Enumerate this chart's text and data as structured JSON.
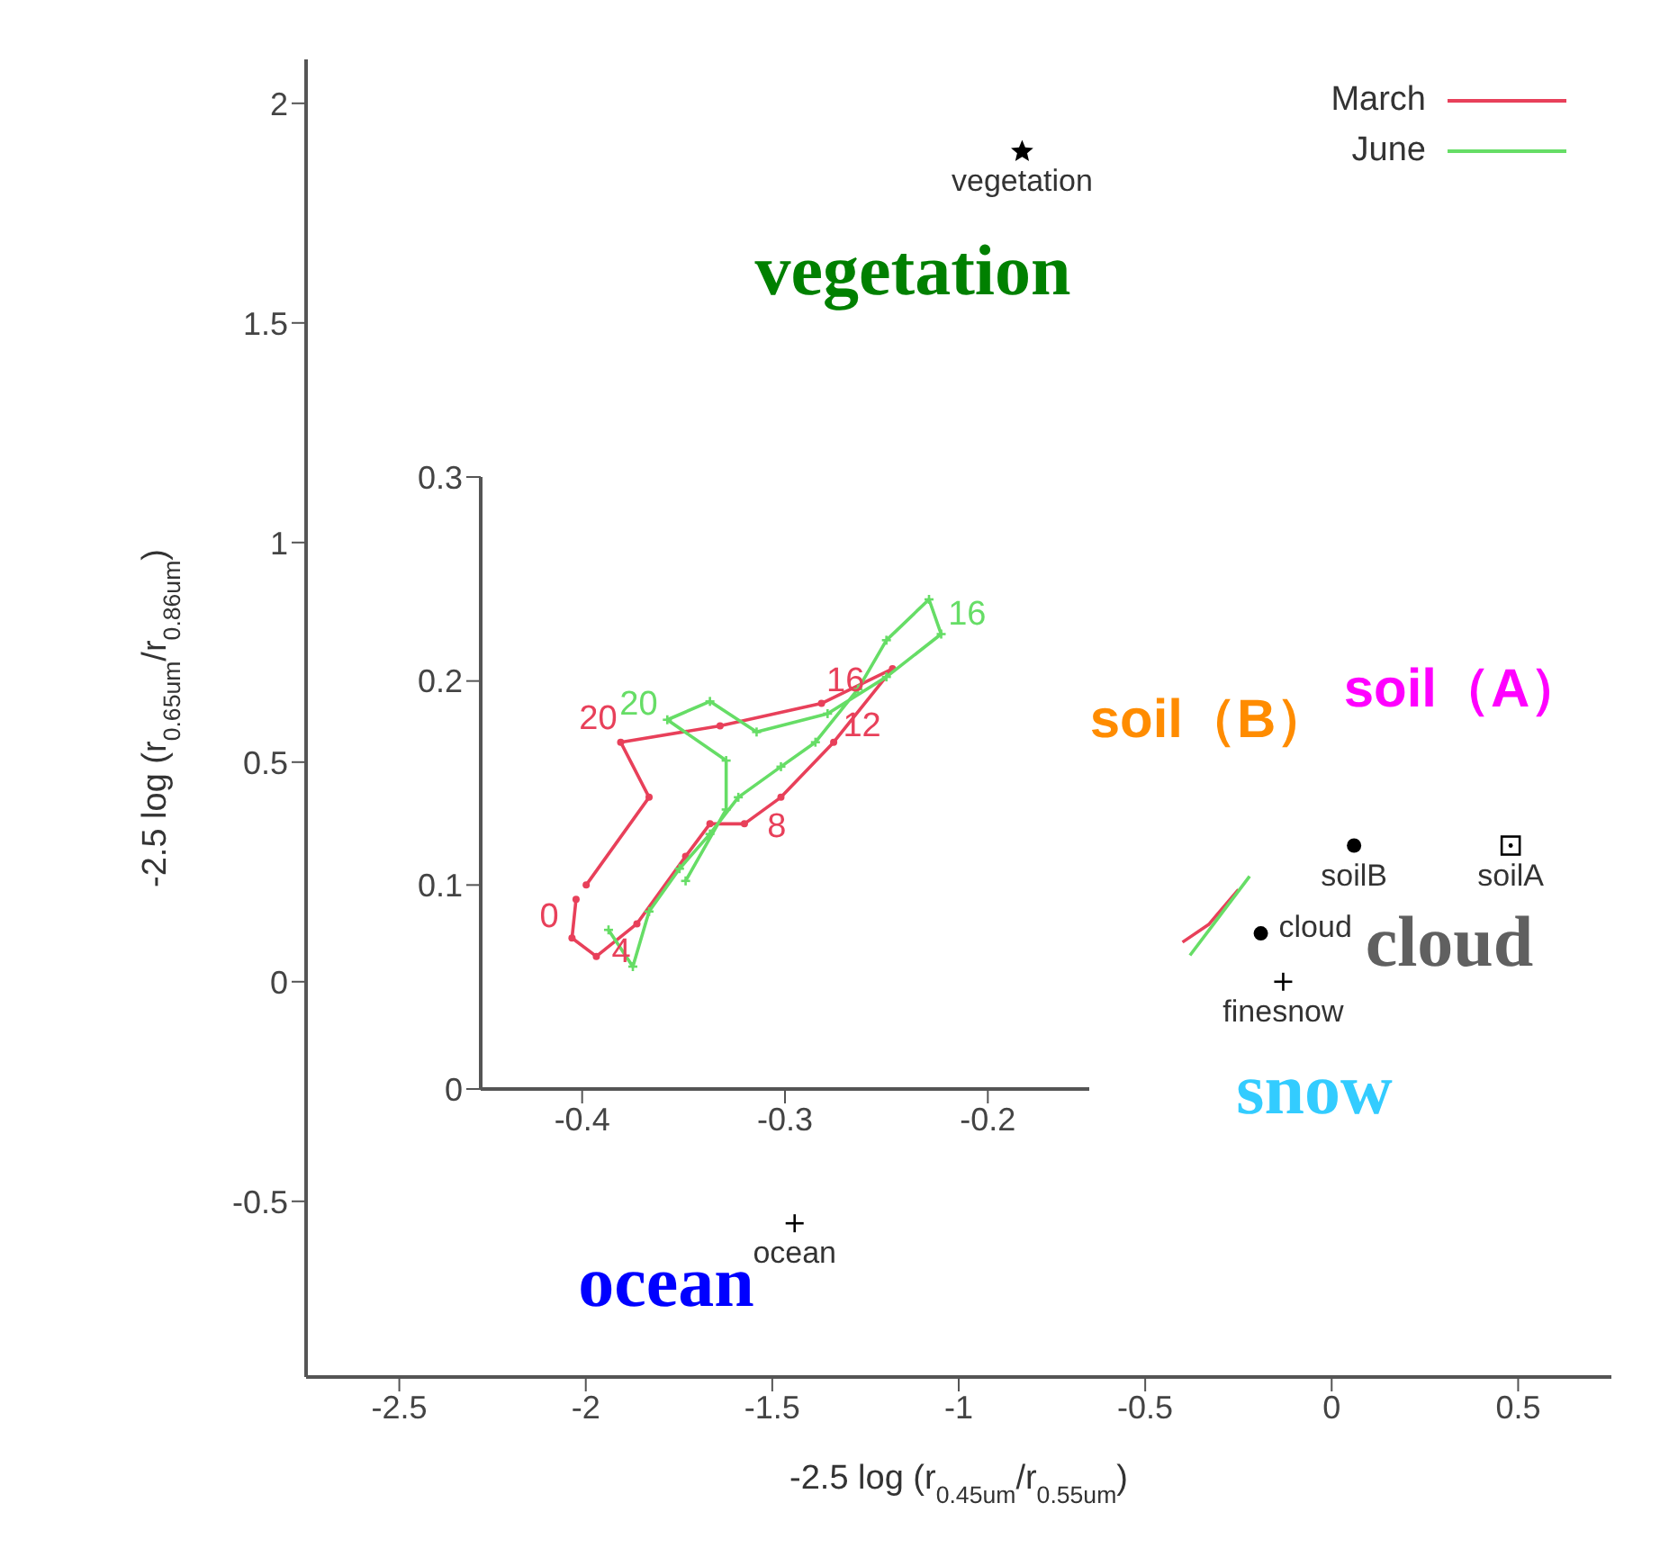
{
  "chart_data": [
    {
      "type": "scatter",
      "xlabel": "-2.5 log (r$_{0.45um}$/r$_{0.55um}$)",
      "ylabel": "-2.5 log (r$_{0.65um}$/r$_{0.86um}$)",
      "xlim": [
        -2.75,
        0.75
      ],
      "ylim": [
        -0.9,
        2.1
      ],
      "xticks": [
        -2.5,
        -2,
        -1.5,
        -1,
        -0.5,
        0,
        0.5
      ],
      "yticks": [
        -0.5,
        0,
        0.5,
        1,
        1.5,
        2
      ],
      "legend": "top right",
      "series": [
        {
          "name": "March",
          "type": "line",
          "color": "#e8405a",
          "marker": "none",
          "x": [
            -0.4,
            -0.33,
            -0.25
          ],
          "values": [
            0.09,
            0.13,
            0.21
          ]
        },
        {
          "name": "June",
          "type": "line",
          "color": "#66dd66",
          "marker": "none",
          "x": [
            -0.38,
            -0.3,
            -0.22
          ],
          "values": [
            0.06,
            0.15,
            0.24
          ]
        },
        {
          "name": "vegetation",
          "color": "#000000",
          "marker": "star",
          "x": [
            -0.83
          ],
          "values": [
            1.89
          ]
        },
        {
          "name": "ocean",
          "color": "#000000",
          "marker": "cross",
          "x": [
            -1.44
          ],
          "values": [
            -0.55
          ]
        },
        {
          "name": "soilB",
          "color": "#000000",
          "marker": "circle",
          "x": [
            0.06
          ],
          "values": [
            0.31
          ]
        },
        {
          "name": "soilA",
          "color": "#000000",
          "marker": "square",
          "x": [
            0.48
          ],
          "values": [
            0.31
          ]
        },
        {
          "name": "cloud",
          "color": "#000000",
          "marker": "circle",
          "x": [
            -0.19
          ],
          "values": [
            0.11
          ]
        },
        {
          "name": "finesnow",
          "color": "#000000",
          "marker": "cross",
          "x": [
            -0.13
          ],
          "values": [
            0.0
          ]
        }
      ],
      "annotations": [
        "vegetation",
        "ocean",
        "soil（B）",
        "soil（A）",
        "cloud",
        "snow"
      ]
    },
    {
      "type": "line",
      "xlim": [
        -0.45,
        -0.15
      ],
      "ylim": [
        0,
        0.3
      ],
      "xticks": [
        -0.4,
        -0.3,
        -0.2
      ],
      "yticks": [
        0,
        0.1,
        0.2,
        0.3
      ],
      "series": [
        {
          "color": "#e8405a",
          "marker": "circle",
          "x": [
            -0.403,
            -0.405,
            -0.393,
            -0.373,
            -0.349,
            -0.337,
            -0.32,
            -0.302,
            -0.276,
            -0.247,
            -0.282,
            -0.332,
            -0.381,
            -0.367,
            -0.398
          ],
          "values": [
            0.093,
            0.074,
            0.065,
            0.081,
            0.114,
            0.13,
            0.13,
            0.143,
            0.17,
            0.206,
            0.189,
            0.178,
            0.17,
            0.143,
            0.1
          ]
        },
        {
          "color": "#66dd66",
          "marker": "cross",
          "x": [
            -0.387,
            -0.375,
            -0.367,
            -0.352,
            -0.337,
            -0.323,
            -0.302,
            -0.285,
            -0.264,
            -0.25,
            -0.229,
            -0.223,
            -0.25,
            -0.279,
            -0.314,
            -0.337,
            -0.358,
            -0.329,
            -0.329,
            -0.349
          ],
          "values": [
            0.078,
            0.06,
            0.087,
            0.108,
            0.125,
            0.143,
            0.158,
            0.17,
            0.196,
            0.22,
            0.24,
            0.223,
            0.202,
            0.184,
            0.175,
            0.19,
            0.181,
            0.161,
            0.137,
            0.102
          ]
        }
      ],
      "annotations": [
        {
          "text": "0",
          "x": -0.403,
          "y": 0.093
        },
        {
          "text": "4",
          "x": -0.373,
          "y": 0.081
        },
        {
          "text": "8",
          "x": -0.32,
          "y": 0.13
        },
        {
          "text": "12",
          "x": -0.276,
          "y": 0.17
        },
        {
          "text": "16",
          "x": -0.282,
          "y": 0.189
        },
        {
          "text": "20",
          "x": -0.381,
          "y": 0.17
        },
        {
          "text": "20",
          "x": -0.358,
          "y": 0.181
        },
        {
          "text": "16",
          "x": -0.223,
          "y": 0.223
        }
      ]
    }
  ]
}
